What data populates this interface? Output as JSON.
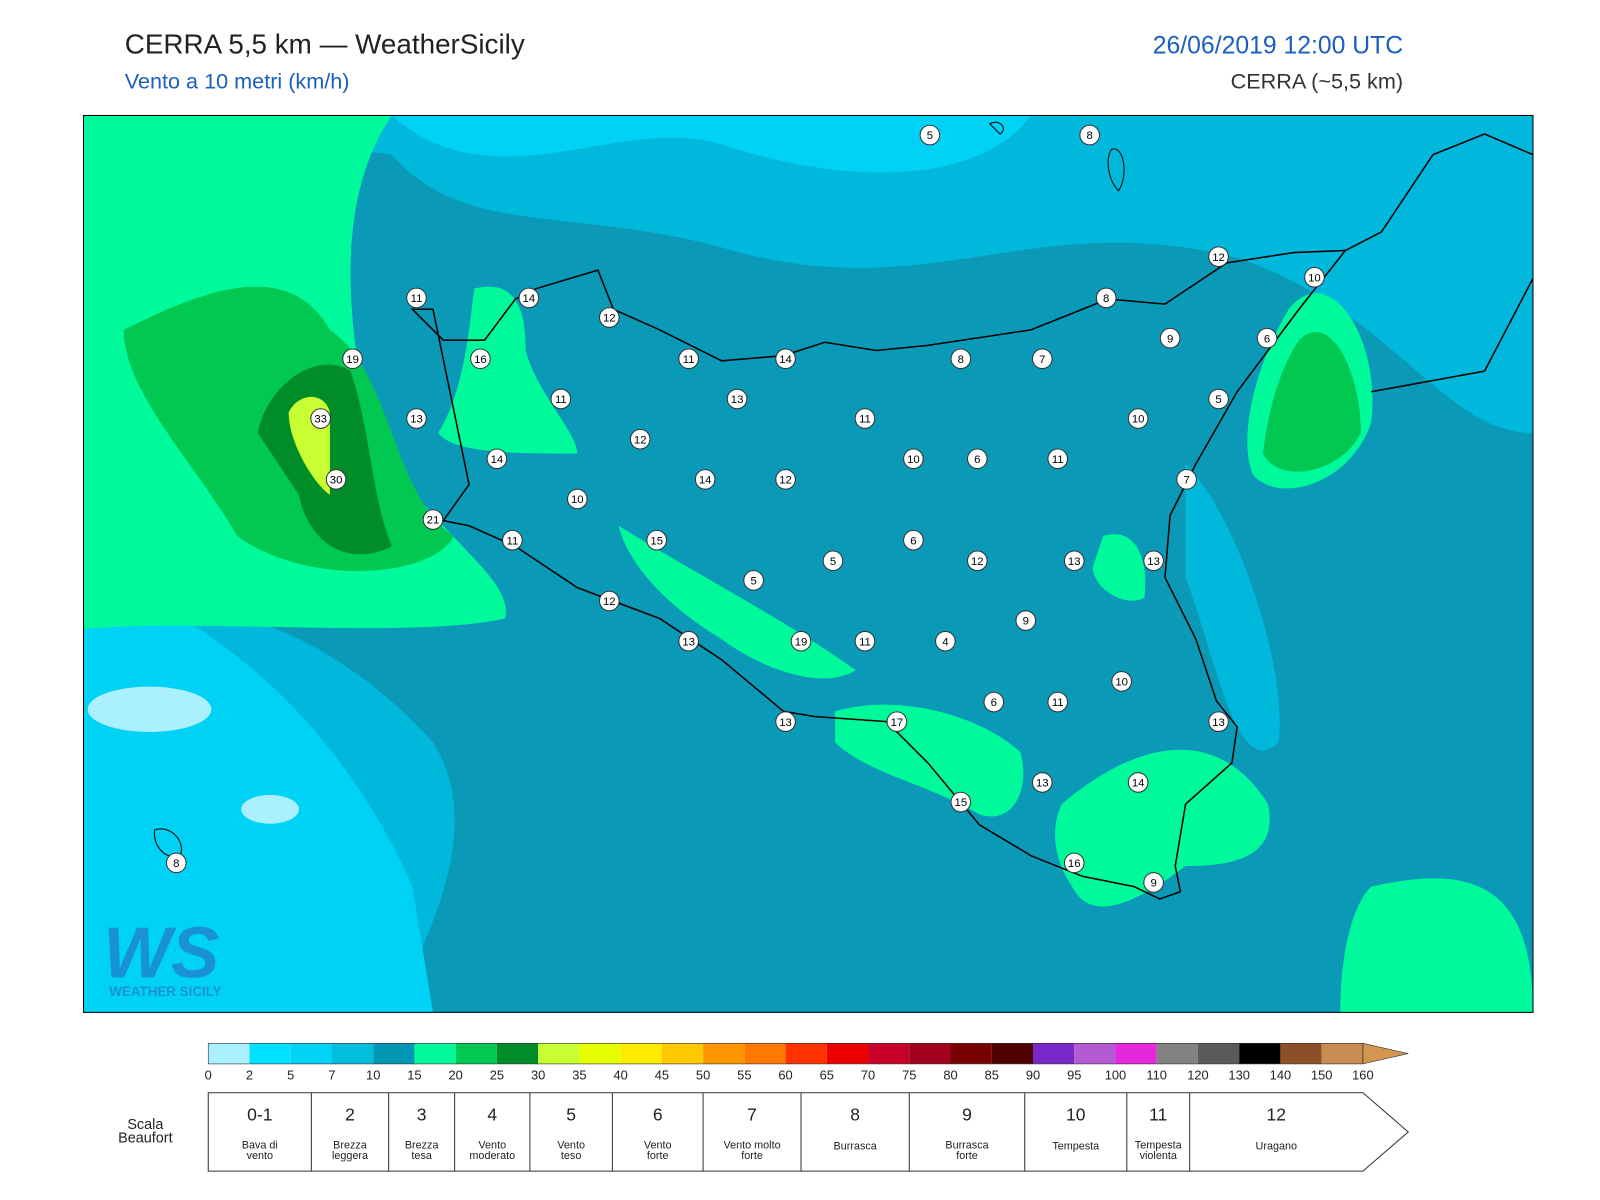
{
  "header": {
    "title": "CERRA 5,5 km — WeatherSicily",
    "subtitle": "Vento a 10 metri (km/h)",
    "datetime": "26/06/2019 12:00 UTC",
    "model": "CERRA (~5,5 km)"
  },
  "stations": [
    5,
    8,
    12,
    10,
    11,
    14,
    12,
    8,
    9,
    6,
    19,
    16,
    11,
    14,
    8,
    7,
    11,
    13,
    5,
    33,
    13,
    11,
    10,
    12,
    14,
    10,
    6,
    11,
    30,
    14,
    12,
    7,
    10,
    21,
    11,
    15,
    6,
    5,
    12,
    13,
    13,
    5,
    12,
    9,
    13,
    19,
    11,
    4,
    10,
    6,
    11,
    13,
    17,
    13,
    13,
    14,
    15,
    8,
    16,
    9
  ],
  "colorbar": {
    "ticks": [
      0,
      2,
      5,
      7,
      10,
      15,
      20,
      25,
      30,
      35,
      40,
      45,
      50,
      55,
      60,
      65,
      70,
      75,
      80,
      85,
      90,
      95,
      100,
      110,
      120,
      130,
      140,
      150,
      160
    ],
    "colors": [
      "#aaf0ff",
      "#00e1ff",
      "#00d2f5",
      "#00bedc",
      "#0096b4",
      "#00fa9b",
      "#00c850",
      "#008c28",
      "#c8ff32",
      "#e6ff00",
      "#ffeb00",
      "#ffc800",
      "#ff9600",
      "#ff7800",
      "#ff3200",
      "#eb0000",
      "#c80028",
      "#a0001e",
      "#780000",
      "#500000",
      "#7828c8",
      "#b45ad2",
      "#e628dc",
      "#828282",
      "#5a5a5a",
      "#000000",
      "#8c5028",
      "#c88c50",
      "#d29650"
    ]
  },
  "beaufort": {
    "label": "Scala Beaufort",
    "levels": [
      {
        "force": "0-1",
        "name": "Bava di vento"
      },
      {
        "force": "2",
        "name": "Brezza leggera"
      },
      {
        "force": "3",
        "name": "Brezza tesa"
      },
      {
        "force": "4",
        "name": "Vento moderato"
      },
      {
        "force": "5",
        "name": "Vento teso"
      },
      {
        "force": "6",
        "name": "Vento forte"
      },
      {
        "force": "7",
        "name": "Vento molto forte"
      },
      {
        "force": "8",
        "name": "Burrasca"
      },
      {
        "force": "9",
        "name": "Burrasca forte"
      },
      {
        "force": "10",
        "name": "Tempesta"
      },
      {
        "force": "11",
        "name": "Tempesta violenta"
      },
      {
        "force": "12",
        "name": "Uragano"
      }
    ]
  },
  "logo": {
    "mark": "WS",
    "text": "WEATHER SICILY"
  }
}
